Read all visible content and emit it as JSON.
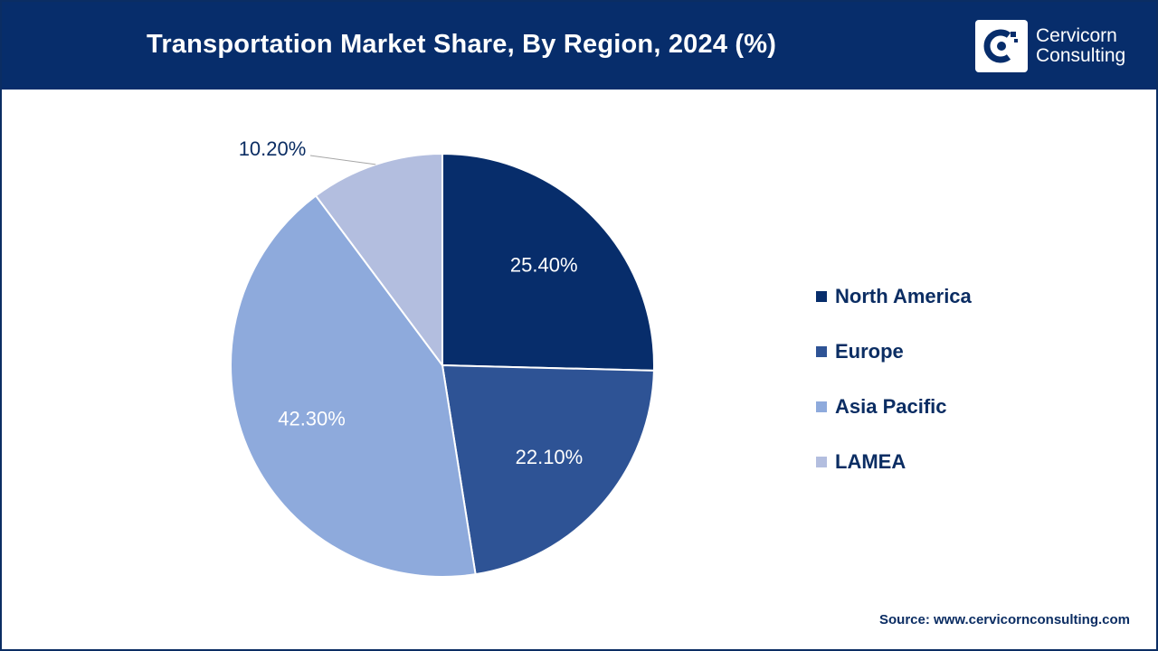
{
  "header": {
    "title": "Transportation Market Share, By Region, 2024 (%)",
    "logo_line1": "Cervicorn",
    "logo_line2": "Consulting"
  },
  "colors": {
    "header_bg": "#072d6b",
    "north_america": "#072d6b",
    "europe": "#2e5395",
    "asia_pacific": "#8eaadc",
    "lamea": "#b3bedf"
  },
  "chart_data": {
    "type": "pie",
    "title": "Transportation Market Share, By Region, 2024 (%)",
    "categories": [
      "North America",
      "Europe",
      "Asia Pacific",
      "LAMEA"
    ],
    "values": [
      25.4,
      22.1,
      42.3,
      10.2
    ],
    "labels": [
      "25.40%",
      "22.10%",
      "42.30%",
      "10.20%"
    ],
    "legend_position": "right",
    "start_angle": "12 o'clock, clockwise"
  },
  "source": "Source: www.cervicornconsulting.com"
}
